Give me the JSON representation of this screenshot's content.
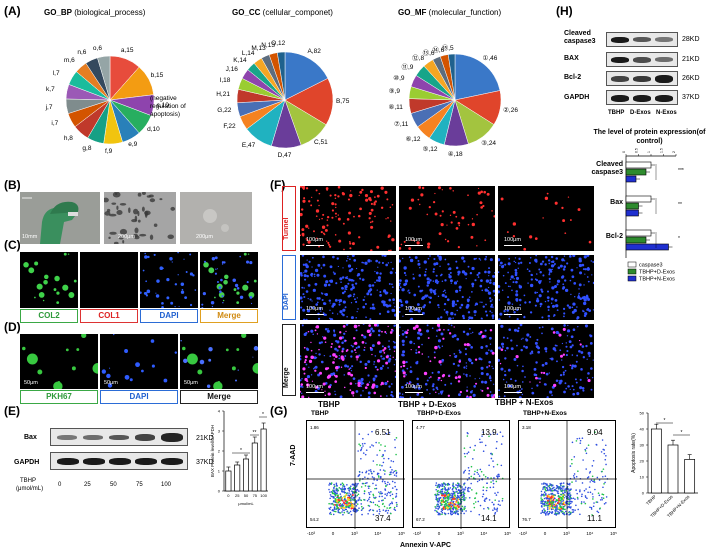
{
  "panel_letters": {
    "A": "(A)",
    "B": "(B)",
    "C": "(C)",
    "D": "(D)",
    "E": "(E)",
    "F": "(F)",
    "G": "(G)",
    "H": "(H)"
  },
  "panel_a": {
    "bp_title_bold": "GO_BP",
    "bp_title_rest": " (biological_process)",
    "cc_title_bold": "GO_CC",
    "cc_title_rest": " (cellular_componet)",
    "mf_title_bold": "GO_MF",
    "mf_title_rest": " (molecular_function)",
    "bp_labels": [
      "a,15",
      "b,15",
      "c,10",
      "d,10",
      "e,9",
      "f,9",
      "g,8",
      "h,8",
      "i,7",
      "j,7",
      "k,7",
      "l,7",
      "m,6",
      "n,6",
      "o,6"
    ],
    "bp_annotation": "(negative regulation of apoptosis)",
    "cc_labels": [
      "A,82",
      "B,75",
      "C,51",
      "D,47",
      "E,47",
      "F,22",
      "G,22",
      "H,21",
      "I,18",
      "J,16",
      "K,14",
      "L,14",
      "M,13",
      "N,13",
      "O,12"
    ],
    "mf_labels": [
      "①,46",
      "②,26",
      "③,24",
      "④,18",
      "⑤,12",
      "⑥,12",
      "⑦,11",
      "⑧,11",
      "⑨,9",
      "⑩,9",
      "⑪,9",
      "⑫,8",
      "⑬,6",
      "⑭,6",
      "⑮,5"
    ]
  },
  "panel_b": {
    "scales": [
      "10mm",
      "200μm",
      "200μm"
    ]
  },
  "panel_c": {
    "labels": [
      "COL2",
      "COL1",
      "DAPI",
      "Merge"
    ]
  },
  "panel_d": {
    "labels": [
      "PKH67",
      "DAPI",
      "Merge"
    ],
    "scales": [
      "50μm",
      "50μm",
      "50μm"
    ]
  },
  "panel_e": {
    "rows": [
      "Bax",
      "GAPDH"
    ],
    "kd": [
      "21KD",
      "37KD"
    ],
    "tbhp_label": "TBHP",
    "unit_label": "(μmol/mL)",
    "doses": [
      "0",
      "25",
      "50",
      "75",
      "100"
    ],
    "ylabel": "BAX Protein level/GAPDH",
    "xlabel": "μmol/mL",
    "sig": [
      "*",
      "**",
      "*"
    ]
  },
  "panel_f": {
    "rows": [
      "Tunnel",
      "DAPI",
      "Merge"
    ],
    "columns": [
      "TBHP",
      "TBHP + D-Exos",
      "TBHP + N-Exos"
    ],
    "scale": "100μm"
  },
  "panel_g": {
    "columns": [
      "TBHP",
      "TBHP+D-Exos",
      "TBHP+N-Exos"
    ],
    "ylabel": "7-AAD",
    "xlabel": "Annexin V-APC",
    "quadrants": [
      {
        "ur": "6.51",
        "lr": "37.4",
        "ul": "1.86",
        "ll": "54.2"
      },
      {
        "ur": "13.9",
        "lr": "14.1",
        "ul": "4.77",
        "ll": "67.2"
      },
      {
        "ur": "9.04",
        "lr": "11.1",
        "ul": "3.18",
        "ll": "76.7"
      }
    ],
    "axis_ticks": [
      "-10³",
      "0",
      "10³",
      "10⁴",
      "10⁵"
    ],
    "chart_ylabel": "Apoptosis rate(%)",
    "chart_ticks": [
      "0",
      "10",
      "20",
      "30",
      "40",
      "50"
    ],
    "chart_cats": [
      "TBHP",
      "TBHP+D-Exos",
      "TBHP+N-Exos"
    ],
    "sig": [
      "*",
      "*"
    ]
  },
  "panel_h": {
    "rows": [
      "Cleaved caspase3",
      "BAX",
      "Bcl-2",
      "GAPDH"
    ],
    "kd": [
      "28KD",
      "21KD",
      "26KD",
      "37KD"
    ],
    "lanes": [
      "TBHP",
      "D-Exos",
      "N-Exos"
    ],
    "chart_title": "The level of protein expression(of control)",
    "groups": [
      "Cleaved caspase3",
      "Bax",
      "Bcl-2"
    ],
    "legend": [
      "caspase3",
      "TBHP+D-Exos",
      "TBHP+N-Exos"
    ],
    "ticks": [
      "0",
      "0.5",
      "1",
      "1.5",
      "2"
    ]
  },
  "chart_data": [
    {
      "type": "pie",
      "title": "GO_BP (biological_process)",
      "categories": [
        "a",
        "b",
        "c",
        "d",
        "e",
        "f",
        "g",
        "h",
        "i",
        "j",
        "k",
        "l",
        "m",
        "n",
        "o"
      ],
      "values": [
        15,
        15,
        10,
        10,
        9,
        9,
        8,
        8,
        7,
        7,
        7,
        7,
        6,
        6,
        6
      ],
      "colors": [
        "#e74c3c",
        "#f39c12",
        "#8e44ad",
        "#27ae60",
        "#2980b9",
        "#f1c40f",
        "#16a085",
        "#c0392b",
        "#d35400",
        "#7f8c8d",
        "#9b59b6",
        "#1abc9c",
        "#e67e22",
        "#34495e",
        "#95a5a6"
      ]
    },
    {
      "type": "pie",
      "title": "GO_CC (cellular_componet)",
      "categories": [
        "A",
        "B",
        "C",
        "D",
        "E",
        "F",
        "G",
        "H",
        "I",
        "J",
        "K",
        "L",
        "M",
        "N",
        "O"
      ],
      "values": [
        82,
        75,
        51,
        47,
        47,
        22,
        22,
        21,
        18,
        16,
        14,
        14,
        13,
        13,
        12
      ],
      "colors": [
        "#3a78c8",
        "#e0452b",
        "#a3c43f",
        "#6a3d9a",
        "#20b2c0",
        "#f58220",
        "#4a6fb5",
        "#c0392b",
        "#9acd32",
        "#8e44ad",
        "#17a589",
        "#f5a623",
        "#5d6d7e",
        "#d35400",
        "#1f618d"
      ]
    },
    {
      "type": "pie",
      "title": "GO_MF (molecular_function)",
      "categories": [
        "1",
        "2",
        "3",
        "4",
        "5",
        "6",
        "7",
        "8",
        "9",
        "10",
        "11",
        "12",
        "13",
        "14",
        "15"
      ],
      "values": [
        46,
        26,
        24,
        18,
        12,
        12,
        11,
        11,
        9,
        9,
        9,
        8,
        6,
        6,
        5
      ],
      "colors": [
        "#3a78c8",
        "#e0452b",
        "#a3c43f",
        "#6a3d9a",
        "#20b2c0",
        "#f58220",
        "#4a6fb5",
        "#c0392b",
        "#9acd32",
        "#8e44ad",
        "#17a589",
        "#f5a623",
        "#5d6d7e",
        "#d35400",
        "#1f618d"
      ]
    },
    {
      "type": "bar",
      "title": "",
      "ylabel": "BAX Protein level/GAPDH",
      "xlabel": "μmol/mL",
      "categories": [
        "0",
        "25",
        "50",
        "75",
        "100"
      ],
      "values": [
        1.0,
        1.3,
        1.6,
        2.4,
        3.1
      ],
      "errors": [
        0.2,
        0.15,
        0.2,
        0.3,
        0.3
      ],
      "ylim": [
        0,
        4
      ]
    },
    {
      "type": "bar",
      "title": "",
      "ylabel": "Apoptosis rate(%)",
      "categories": [
        "TBHP",
        "TBHP+D-Exos",
        "TBHP+N-Exos"
      ],
      "values": [
        40,
        30,
        21
      ],
      "errors": [
        3,
        3,
        3
      ],
      "ylim": [
        0,
        50
      ]
    },
    {
      "type": "bar",
      "title": "The level of protein expression(of control)",
      "orientation": "horizontal",
      "categories": [
        "Cleaved caspase3",
        "Bax",
        "Bcl-2"
      ],
      "series": [
        {
          "name": "caspase3",
          "values": [
            1.0,
            1.0,
            1.0
          ]
        },
        {
          "name": "TBHP+D-Exos",
          "values": [
            0.8,
            0.5,
            0.8
          ]
        },
        {
          "name": "TBHP+N-Exos",
          "values": [
            0.4,
            0.5,
            1.7
          ]
        }
      ],
      "xlim": [
        0,
        2
      ]
    }
  ]
}
